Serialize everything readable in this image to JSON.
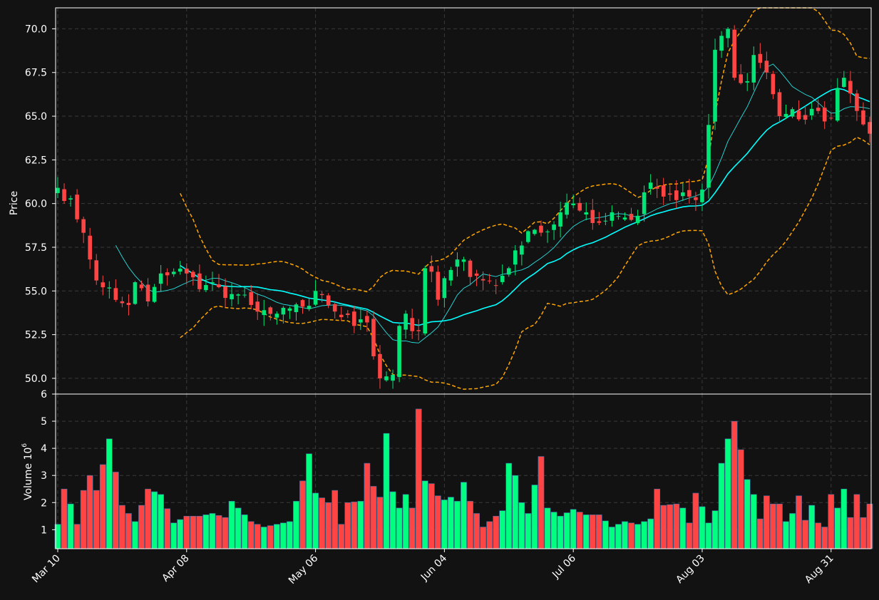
{
  "colors": {
    "background": "#121212",
    "up": "#00e676",
    "down": "#ff4444",
    "volume_up": "#00ff80",
    "volume_down": "#ff4444",
    "ma_fast": "#26e0e0",
    "ma_slow": "#00ffff",
    "bollinger": "#ffa500",
    "grid": "#3a3a3a",
    "text": "#ffffff"
  },
  "chart_data": [
    {
      "type": "candlestick",
      "name": "price",
      "ylabel": "Price",
      "ylim": [
        49.1,
        71.2
      ],
      "yticks": [
        "50.0",
        "52.5",
        "55.0",
        "57.5",
        "60.0",
        "62.5",
        "65.0",
        "67.5",
        "70.0"
      ],
      "ytick_values": [
        50.0,
        52.5,
        55.0,
        57.5,
        60.0,
        62.5,
        65.0,
        67.5,
        70.0
      ],
      "grid": true,
      "xtick_labels": [
        "Mar 10",
        "Apr 08",
        "May 06",
        "Jun 04",
        "Jul 06",
        "Aug 03",
        "Aug 31"
      ],
      "xtick_index": [
        0,
        20,
        40,
        60,
        80,
        100,
        120
      ],
      "bar_count": 127,
      "price_anchors": [
        [
          0,
          60.9
        ],
        [
          2,
          60.3
        ],
        [
          3,
          59.1
        ],
        [
          5,
          56.8
        ],
        [
          6,
          55.6
        ],
        [
          8,
          55.2
        ],
        [
          10,
          54.3
        ],
        [
          11,
          54.2
        ],
        [
          12,
          55.5
        ],
        [
          14,
          54.4
        ],
        [
          16,
          56.0
        ],
        [
          18,
          56.1
        ],
        [
          20,
          56.0
        ],
        [
          22,
          55.1
        ],
        [
          24,
          55.5
        ],
        [
          26,
          54.6
        ],
        [
          28,
          54.8
        ],
        [
          30,
          54.2
        ],
        [
          32,
          53.9
        ],
        [
          34,
          53.7
        ],
        [
          36,
          54.0
        ],
        [
          38,
          54.1
        ],
        [
          40,
          55.0
        ],
        [
          42,
          54.2
        ],
        [
          44,
          53.5
        ],
        [
          46,
          53.0
        ],
        [
          48,
          53.2
        ],
        [
          50,
          50.0
        ],
        [
          52,
          50.2
        ],
        [
          53,
          53.0
        ],
        [
          54,
          53.7
        ],
        [
          55,
          52.7
        ],
        [
          56,
          52.7
        ],
        [
          57,
          56.3
        ],
        [
          58,
          56.1
        ],
        [
          59,
          54.5
        ],
        [
          61,
          56.2
        ],
        [
          62,
          56.8
        ],
        [
          63,
          56.8
        ],
        [
          64,
          55.8
        ],
        [
          66,
          55.6
        ],
        [
          68,
          55.3
        ],
        [
          70,
          56.3
        ],
        [
          72,
          57.6
        ],
        [
          74,
          58.5
        ],
        [
          76,
          58.4
        ],
        [
          78,
          59.5
        ],
        [
          80,
          60.0
        ],
        [
          82,
          59.5
        ],
        [
          84,
          58.9
        ],
        [
          86,
          59.5
        ],
        [
          88,
          59.2
        ],
        [
          90,
          59.3
        ],
        [
          92,
          61.2
        ],
        [
          94,
          60.4
        ],
        [
          96,
          60.2
        ],
        [
          98,
          60.4
        ],
        [
          100,
          60.8
        ],
        [
          101,
          64.5
        ],
        [
          102,
          68.8
        ],
        [
          103,
          69.6
        ],
        [
          104,
          70.0
        ],
        [
          105,
          67.2
        ],
        [
          107,
          67.0
        ],
        [
          108,
          68.5
        ],
        [
          110,
          67.5
        ],
        [
          112,
          65.0
        ],
        [
          114,
          65.4
        ],
        [
          116,
          64.8
        ],
        [
          118,
          65.3
        ],
        [
          120,
          64.9
        ],
        [
          121,
          66.6
        ],
        [
          122,
          67.2
        ],
        [
          123,
          66.3
        ],
        [
          124,
          65.3
        ],
        [
          126,
          64.0
        ]
      ],
      "series": [
        {
          "name": "",
          "kind": "ma",
          "window": 10,
          "color_key": "ma_fast"
        },
        {
          "name": "",
          "kind": "ma",
          "window": 20,
          "color_key": "ma_slow"
        },
        {
          "name": "",
          "kind": "bollinger",
          "window": 20,
          "k": 2,
          "color_key": "bollinger"
        }
      ]
    },
    {
      "type": "bar",
      "name": "volume",
      "ylabel": "Volume  10",
      "ylabel_exponent": "6",
      "ylim": [
        0.3,
        6.0
      ],
      "yticks": [
        "1",
        "2",
        "3",
        "4",
        "5",
        "6"
      ],
      "ytick_values": [
        1,
        2,
        3,
        4,
        5,
        6
      ],
      "grid": true,
      "volume_anchors": [
        [
          0,
          1.2
        ],
        [
          1,
          2.5
        ],
        [
          2,
          1.95
        ],
        [
          3,
          1.2
        ],
        [
          4,
          2.45
        ],
        [
          5,
          3.0
        ],
        [
          6,
          2.45
        ],
        [
          8,
          4.35
        ],
        [
          10,
          1.9
        ],
        [
          12,
          1.3
        ],
        [
          14,
          2.5
        ],
        [
          16,
          2.3
        ],
        [
          18,
          1.25
        ],
        [
          20,
          1.5
        ],
        [
          22,
          1.5
        ],
        [
          24,
          1.6
        ],
        [
          26,
          1.45
        ],
        [
          27,
          2.05
        ],
        [
          30,
          1.3
        ],
        [
          32,
          1.1
        ],
        [
          34,
          1.2
        ],
        [
          36,
          1.3
        ],
        [
          38,
          2.8
        ],
        [
          39,
          3.8
        ],
        [
          40,
          2.35
        ],
        [
          42,
          2.0
        ],
        [
          43,
          2.45
        ],
        [
          44,
          1.2
        ],
        [
          45,
          2.0
        ],
        [
          47,
          2.05
        ],
        [
          48,
          3.45
        ],
        [
          49,
          2.6
        ],
        [
          50,
          2.2
        ],
        [
          51,
          4.55
        ],
        [
          52,
          2.4
        ],
        [
          53,
          1.8
        ],
        [
          54,
          2.3
        ],
        [
          55,
          1.8
        ],
        [
          56,
          5.45
        ],
        [
          57,
          2.8
        ],
        [
          58,
          2.7
        ],
        [
          59,
          2.25
        ],
        [
          60,
          2.1
        ],
        [
          61,
          2.2
        ],
        [
          62,
          2.05
        ],
        [
          63,
          2.75
        ],
        [
          64,
          2.05
        ],
        [
          65,
          1.6
        ],
        [
          66,
          1.1
        ],
        [
          68,
          1.5
        ],
        [
          69,
          1.7
        ],
        [
          70,
          3.45
        ],
        [
          71,
          3.0
        ],
        [
          72,
          2.0
        ],
        [
          73,
          1.6
        ],
        [
          74,
          2.65
        ],
        [
          75,
          3.7
        ],
        [
          76,
          1.8
        ],
        [
          78,
          1.5
        ],
        [
          80,
          1.75
        ],
        [
          82,
          1.55
        ],
        [
          84,
          1.55
        ],
        [
          86,
          1.1
        ],
        [
          88,
          1.3
        ],
        [
          90,
          1.2
        ],
        [
          92,
          1.4
        ],
        [
          93,
          2.5
        ],
        [
          94,
          1.9
        ],
        [
          96,
          1.95
        ],
        [
          97,
          1.8
        ],
        [
          98,
          1.25
        ],
        [
          99,
          2.35
        ],
        [
          100,
          1.85
        ],
        [
          101,
          1.25
        ],
        [
          102,
          1.7
        ],
        [
          103,
          3.45
        ],
        [
          104,
          4.35
        ],
        [
          105,
          5.0
        ],
        [
          106,
          3.95
        ],
        [
          107,
          2.85
        ],
        [
          108,
          2.3
        ],
        [
          109,
          1.4
        ],
        [
          110,
          2.25
        ],
        [
          111,
          1.95
        ],
        [
          112,
          1.95
        ],
        [
          113,
          1.3
        ],
        [
          114,
          1.6
        ],
        [
          115,
          2.25
        ],
        [
          116,
          1.35
        ],
        [
          117,
          1.9
        ],
        [
          118,
          1.25
        ],
        [
          119,
          1.1
        ],
        [
          120,
          2.3
        ],
        [
          121,
          1.8
        ],
        [
          122,
          2.5
        ],
        [
          123,
          1.45
        ],
        [
          124,
          2.3
        ],
        [
          125,
          1.45
        ],
        [
          126,
          1.95
        ]
      ]
    }
  ]
}
